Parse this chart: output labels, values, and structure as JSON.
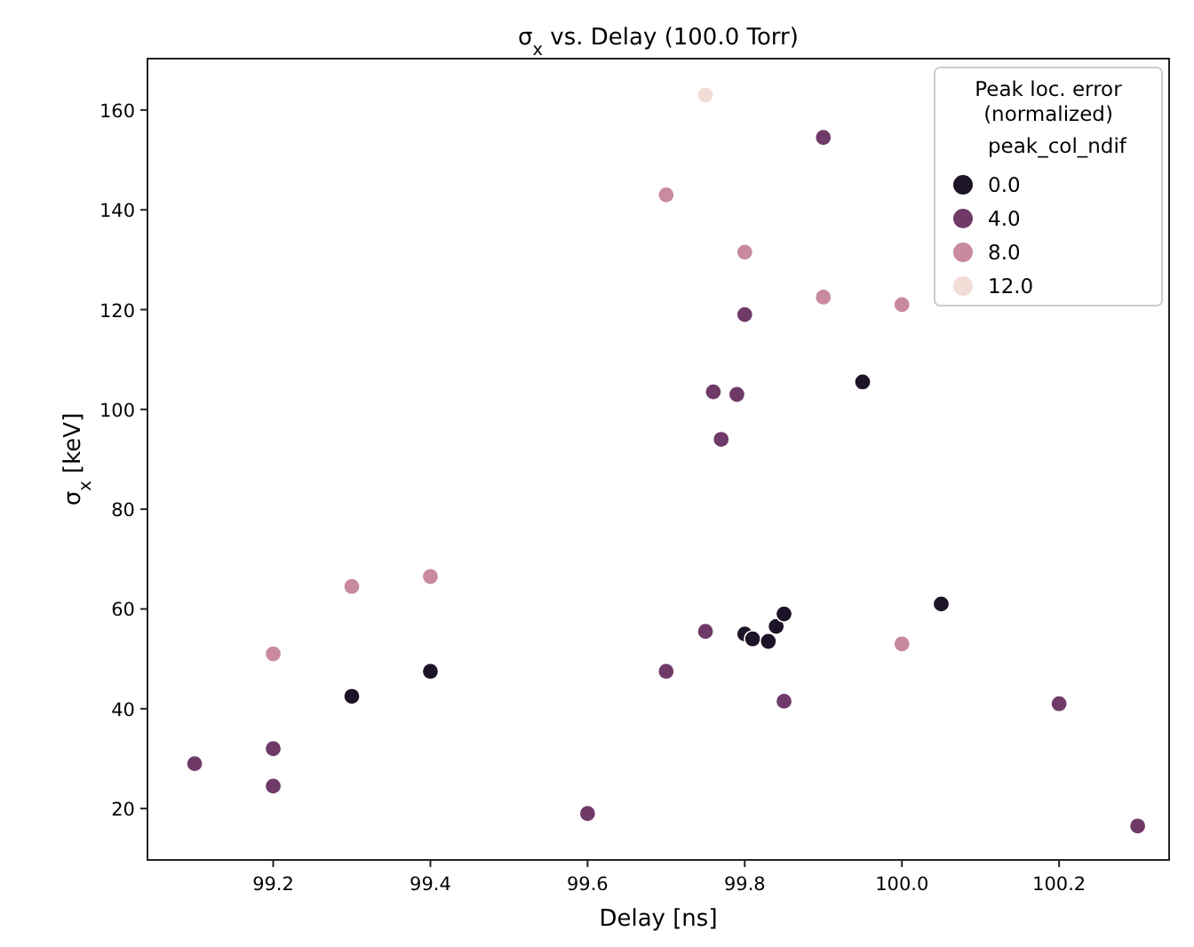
{
  "chart_data": {
    "type": "scatter",
    "title": "σ$_{x}$ vs. Delay (100.0 Torr)",
    "xlabel": "Delay [ns]",
    "ylabel": "σ$_{x}$ [keV]",
    "legend_title": "Peak loc. error\n(normalized)",
    "clabel": "peak_col_ndif",
    "legend": "top right",
    "marker": "circle",
    "xlim": [
      99.04,
      100.34
    ],
    "xticks": [
      {
        "value": 99.2,
        "label": "99.2"
      },
      {
        "value": 99.4,
        "label": "99.4"
      },
      {
        "value": 99.6,
        "label": "99.6"
      },
      {
        "value": 99.8,
        "label": "99.8"
      },
      {
        "value": 100.0,
        "label": "100.0"
      },
      {
        "value": 100.2,
        "label": "100.2"
      }
    ],
    "ylim": [
      9.7,
      170.3
    ],
    "yticks": [
      20,
      40,
      60,
      80,
      100,
      120,
      140,
      160
    ],
    "series": [
      {
        "name": "0.0",
        "color": "#1d1427",
        "x": [
          99.3,
          99.4,
          99.8,
          99.81,
          99.83,
          99.84,
          99.85,
          99.95,
          100.05
        ],
        "values": [
          42.5,
          47.5,
          55,
          54,
          53.5,
          56.5,
          59,
          105.5,
          61
        ]
      },
      {
        "name": "4.0",
        "color": "#6f3a68",
        "x": [
          99.1,
          99.2,
          99.2,
          99.6,
          99.7,
          99.75,
          99.76,
          99.77,
          99.79,
          99.8,
          99.85,
          99.9,
          100.2,
          100.3
        ],
        "values": [
          29,
          32,
          24.5,
          19,
          47.5,
          55.5,
          103.5,
          94,
          103,
          119,
          41.5,
          154.5,
          41,
          16.5
        ]
      },
      {
        "name": "8.0",
        "color": "#c98a9e",
        "x": [
          99.2,
          99.3,
          99.4,
          99.7,
          99.8,
          99.9,
          100.0,
          100.0
        ],
        "values": [
          51,
          64.5,
          66.5,
          143,
          131.5,
          122.5,
          121,
          53
        ]
      },
      {
        "name": "12.0",
        "color": "#f1dcd6",
        "x": [
          99.75
        ],
        "values": [
          163
        ]
      }
    ]
  }
}
